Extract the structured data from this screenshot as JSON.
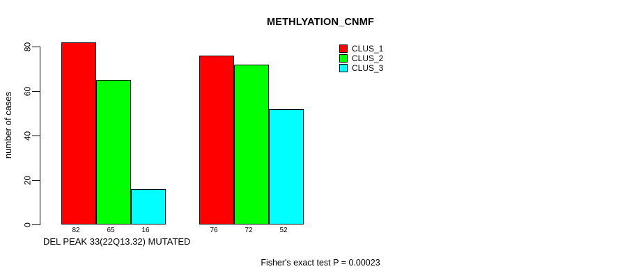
{
  "chart_data": {
    "type": "bar",
    "title": "METHLYATION_CNMF",
    "ylabel": "number of cases",
    "xlabel": "DEL PEAK 33(22Q13.32) MUTATED",
    "annotation": "Fisher's exact test P = 0.00023",
    "ylim": [
      0,
      80
    ],
    "yticks": [
      0,
      20,
      40,
      60,
      80
    ],
    "grid": false,
    "legend_position": "top-right",
    "bar_value_labels_shown": true,
    "series": [
      {
        "name": "CLUS_1",
        "color": "#ff0000",
        "values": [
          82,
          76
        ]
      },
      {
        "name": "CLUS_2",
        "color": "#00ff00",
        "values": [
          65,
          72
        ]
      },
      {
        "name": "CLUS_3",
        "color": "#00ffff",
        "values": [
          16,
          52
        ]
      }
    ],
    "axis_color": "#000000",
    "text_color": "#000000",
    "background": "#ffffff"
  }
}
